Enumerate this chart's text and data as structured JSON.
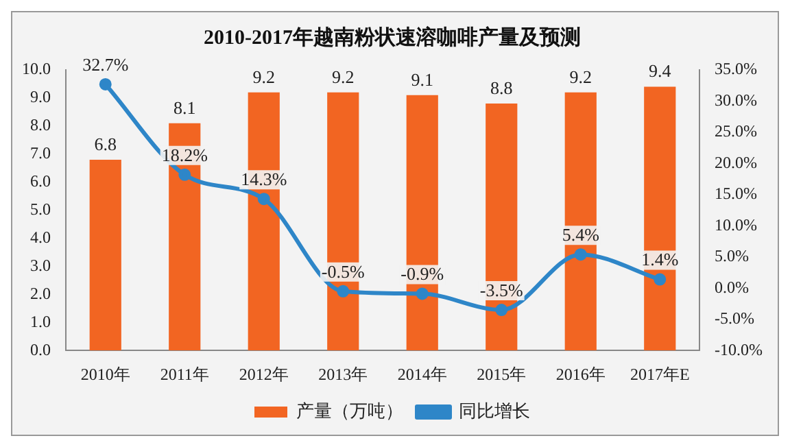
{
  "chart_data": {
    "type": "bar",
    "title": "2010-2017年越南粉状速溶咖啡产量及预测",
    "categories": [
      "2010年",
      "2011年",
      "2012年",
      "2013年",
      "2014年",
      "2015年",
      "2016年",
      "2017年E"
    ],
    "series": [
      {
        "name": "产量（万吨）",
        "color": "#f26522",
        "values": [
          6.8,
          8.1,
          9.2,
          9.2,
          9.1,
          8.8,
          9.2,
          9.4
        ]
      },
      {
        "name": "同比增长",
        "type": "line",
        "axis": "y2",
        "color": "#2e86c8",
        "marker": "circle",
        "values": [
          32.7,
          18.2,
          14.3,
          -0.5,
          -0.9,
          -3.5,
          5.4,
          1.4
        ]
      }
    ],
    "ylim": [
      0,
      10
    ],
    "yticks": [
      {
        "value": 0,
        "label": "0.0"
      },
      {
        "value": 1,
        "label": "1.0"
      },
      {
        "value": 2,
        "label": "2.0"
      },
      {
        "value": 3,
        "label": "3.0"
      },
      {
        "value": 4,
        "label": "4.0"
      },
      {
        "value": 5,
        "label": "5.0"
      },
      {
        "value": 6,
        "label": "6.0"
      },
      {
        "value": 7,
        "label": "7.0"
      },
      {
        "value": 8,
        "label": "8.0"
      },
      {
        "value": 9,
        "label": "9.0"
      },
      {
        "value": 10,
        "label": "10.0"
      }
    ],
    "y2lim": [
      -10,
      35
    ],
    "y2ticks": [
      {
        "value": -10,
        "label": "-10.0%"
      },
      {
        "value": -5,
        "label": "-5.0%"
      },
      {
        "value": 0,
        "label": "0.0%"
      },
      {
        "value": 5,
        "label": "5.0%"
      },
      {
        "value": 10,
        "label": "10.0%"
      },
      {
        "value": 15,
        "label": "15.0%"
      },
      {
        "value": 20,
        "label": "20.0%"
      },
      {
        "value": 25,
        "label": "25.0%"
      },
      {
        "value": 30,
        "label": "30.0%"
      },
      {
        "value": 35,
        "label": "35.0%"
      }
    ],
    "value_labels": [
      [
        "6.8",
        "8.1",
        "9.2",
        "9.2",
        "9.1",
        "8.8",
        "9.2",
        "9.4"
      ],
      [
        "32.7%",
        "18.2%",
        "14.3%",
        "-0.5%",
        "-0.9%",
        "-3.5%",
        "5.4%",
        "1.4%"
      ]
    ],
    "grid": false,
    "legend": "bottom"
  }
}
